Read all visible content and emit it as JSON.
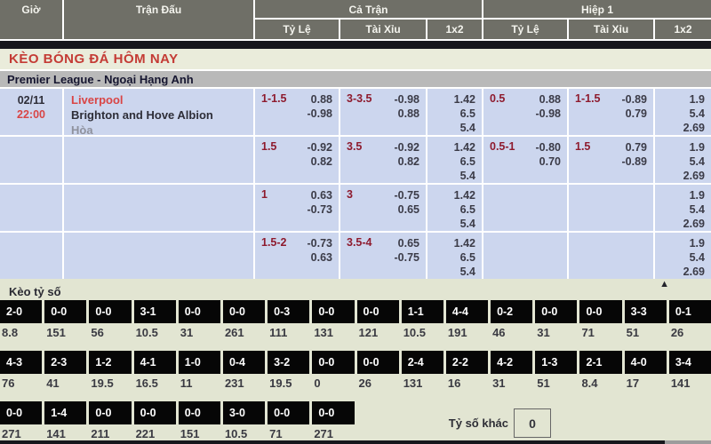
{
  "table_header": {
    "time": "Giờ",
    "match": "Trận Đấu",
    "full_time": "Cả Trận",
    "first_half": "Hiệp 1",
    "handicap": "Tỷ Lệ",
    "over_under": "Tài Xỉu",
    "one_x_two": "1x2"
  },
  "page_title": "KÈO BÓNG ĐÁ HÔM NAY",
  "league_header": "Premier League - Ngoại Hạng Anh",
  "match_info": {
    "date": "02/11",
    "time": "22:00",
    "home_team": "Liverpool",
    "away_team": "Brighton and Hove Albion",
    "draw_label": "Hòa"
  },
  "odds_rows": [
    {
      "ft_hdp_line": "1-1.5",
      "ft_hdp_top": "0.88",
      "ft_hdp_bot": "-0.98",
      "ft_ou_line": "3-3.5",
      "ft_ou_top": "-0.98",
      "ft_ou_bot": "0.88",
      "ft_1x2": [
        "1.42",
        "6.5",
        "5.4"
      ],
      "h1_hdp_line": "0.5",
      "h1_hdp_top": "0.88",
      "h1_hdp_bot": "-0.98",
      "h1_ou_line": "1-1.5",
      "h1_ou_top": "-0.89",
      "h1_ou_bot": "0.79",
      "h1_1x2": [
        "1.9",
        "5.4",
        "2.69"
      ]
    },
    {
      "ft_hdp_line": "1.5",
      "ft_hdp_top": "-0.92",
      "ft_hdp_bot": "0.82",
      "ft_ou_line": "3.5",
      "ft_ou_top": "-0.92",
      "ft_ou_bot": "0.82",
      "ft_1x2": [
        "1.42",
        "6.5",
        "5.4"
      ],
      "h1_hdp_line": "0.5-1",
      "h1_hdp_top": "-0.80",
      "h1_hdp_bot": "0.70",
      "h1_ou_line": "1.5",
      "h1_ou_top": "0.79",
      "h1_ou_bot": "-0.89",
      "h1_1x2": [
        "1.9",
        "5.4",
        "2.69"
      ]
    },
    {
      "ft_hdp_line": "1",
      "ft_hdp_top": "0.63",
      "ft_hdp_bot": "-0.73",
      "ft_ou_line": "3",
      "ft_ou_top": "-0.75",
      "ft_ou_bot": "0.65",
      "ft_1x2": [
        "1.42",
        "6.5",
        "5.4"
      ],
      "h1_1x2": [
        "1.9",
        "5.4",
        "2.69"
      ]
    },
    {
      "ft_hdp_line": "1.5-2",
      "ft_hdp_top": "-0.73",
      "ft_hdp_bot": "0.63",
      "ft_ou_line": "3.5-4",
      "ft_ou_top": "0.65",
      "ft_ou_bot": "-0.75",
      "ft_1x2": [
        "1.42",
        "6.5",
        "5.4"
      ],
      "h1_1x2": [
        "1.9",
        "5.4",
        "2.69"
      ]
    }
  ],
  "score_section": {
    "title": "Kèo tỷ số",
    "row1": [
      {
        "score": "2-0",
        "odds": "8.8"
      },
      {
        "score": "0-0",
        "odds": "151"
      },
      {
        "score": "0-0",
        "odds": "56"
      },
      {
        "score": "3-1",
        "odds": "10.5"
      },
      {
        "score": "0-0",
        "odds": "31"
      },
      {
        "score": "0-0",
        "odds": "261"
      },
      {
        "score": "0-3",
        "odds": "111"
      },
      {
        "score": "0-0",
        "odds": "131"
      },
      {
        "score": "0-0",
        "odds": "121"
      },
      {
        "score": "1-1",
        "odds": "10.5"
      },
      {
        "score": "4-4",
        "odds": "191"
      },
      {
        "score": "0-2",
        "odds": "46"
      },
      {
        "score": "0-0",
        "odds": "31"
      },
      {
        "score": "0-0",
        "odds": "71"
      },
      {
        "score": "3-3",
        "odds": "51"
      },
      {
        "score": "0-1",
        "odds": "26"
      }
    ],
    "row2": [
      {
        "score": "4-3",
        "odds": "76"
      },
      {
        "score": "2-3",
        "odds": "41"
      },
      {
        "score": "1-2",
        "odds": "19.5"
      },
      {
        "score": "4-1",
        "odds": "16.5"
      },
      {
        "score": "1-0",
        "odds": "11"
      },
      {
        "score": "0-4",
        "odds": "231"
      },
      {
        "score": "3-2",
        "odds": "19.5"
      },
      {
        "score": "0-0",
        "odds": "0"
      },
      {
        "score": "0-0",
        "odds": "26"
      },
      {
        "score": "2-4",
        "odds": "131"
      },
      {
        "score": "2-2",
        "odds": "16"
      },
      {
        "score": "4-2",
        "odds": "31"
      },
      {
        "score": "1-3",
        "odds": "51"
      },
      {
        "score": "2-1",
        "odds": "8.4"
      },
      {
        "score": "4-0",
        "odds": "17"
      },
      {
        "score": "3-4",
        "odds": "141"
      }
    ],
    "row3": [
      {
        "score": "0-0",
        "odds": "271"
      },
      {
        "score": "1-4",
        "odds": "141"
      },
      {
        "score": "0-0",
        "odds": "211"
      },
      {
        "score": "0-0",
        "odds": "221"
      },
      {
        "score": "0-0",
        "odds": "151"
      },
      {
        "score": "3-0",
        "odds": "10.5"
      },
      {
        "score": "0-0",
        "odds": "71"
      },
      {
        "score": "0-0",
        "odds": "271"
      }
    ],
    "other_score_label": "Tỷ số khác",
    "other_score_value": "0"
  },
  "icons": {
    "scroll_top_icon": "▲"
  },
  "colors": {
    "header_bg": "#6f6f67",
    "divider_bar": "#17171c",
    "title_red": "#c43b35",
    "league_bar_bg": "#b9b9b9",
    "row_bg": "#ccd6ee",
    "handicap_maroon": "#8e1b2e",
    "team_red": "#d94545",
    "section_bg": "#e2e5d2",
    "score_box_bg": "#060606"
  }
}
